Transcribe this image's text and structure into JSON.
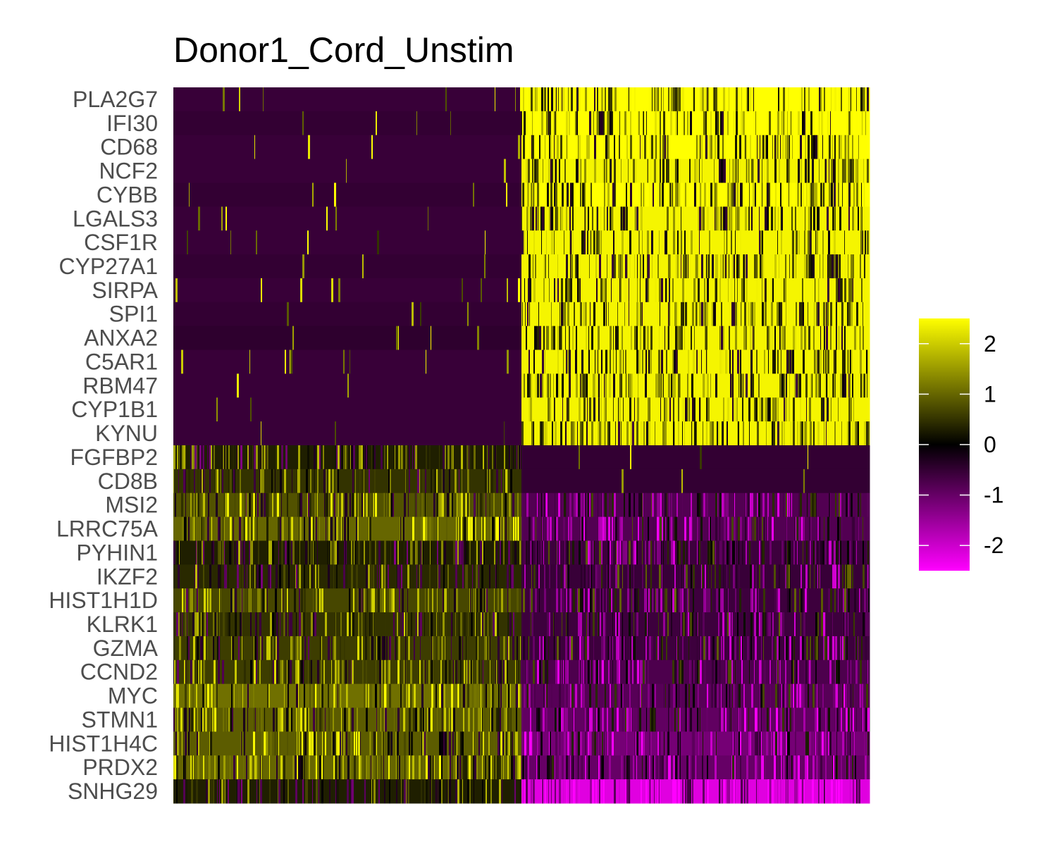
{
  "chart_data": {
    "type": "heatmap",
    "title": "Donor1_Cord_Unstim",
    "xlabel": "",
    "ylabel": "",
    "genes": [
      "PLA2G7",
      "IFI30",
      "CD68",
      "NCF2",
      "CYBB",
      "LGALS3",
      "CSF1R",
      "CYP27A1",
      "SIRPA",
      "SPI1",
      "ANXA2",
      "C5AR1",
      "RBM47",
      "CYP1B1",
      "KYNU",
      "FGFBP2",
      "CD8B",
      "MSI2",
      "LRRC75A",
      "PYHIN1",
      "IKZF2",
      "HIST1H1D",
      "KLRK1",
      "GZMA",
      "CCND2",
      "MYC",
      "STMN1",
      "HIST1H4C",
      "PRDX2",
      "SNHG29"
    ],
    "groups": [
      {
        "cells_fraction": 0.5
      },
      {
        "cells_fraction": 0.5
      }
    ],
    "mean_expression": {
      "group1": [
        -0.55,
        -0.5,
        -0.55,
        -0.55,
        -0.5,
        -0.55,
        -0.55,
        -0.5,
        -0.55,
        -0.5,
        -0.45,
        -0.55,
        -0.55,
        -0.55,
        -0.55,
        0.3,
        0.5,
        0.8,
        1.0,
        0.3,
        0.4,
        0.7,
        0.5,
        0.6,
        0.6,
        1.1,
        0.9,
        0.9,
        1.0,
        0.3
      ],
      "group2": [
        2.5,
        2.5,
        2.5,
        2.4,
        2.5,
        2.4,
        2.4,
        2.4,
        2.4,
        2.4,
        2.4,
        2.4,
        2.4,
        2.4,
        2.4,
        -0.5,
        -0.5,
        -0.8,
        -0.8,
        -0.6,
        -0.55,
        -0.6,
        -0.6,
        -0.6,
        -0.75,
        -0.85,
        -0.95,
        -1.15,
        -1.0,
        -2.2
      ]
    },
    "color_scale": {
      "low": "#ff00ff",
      "mid": "#000000",
      "high": "#ffff00",
      "range": [
        -2.5,
        2.5
      ]
    },
    "legend": {
      "position": "right",
      "ticks": [
        "2",
        "1",
        "0",
        "-1",
        "-2"
      ],
      "tick_values": [
        2,
        1,
        0,
        -1,
        -2
      ]
    }
  }
}
